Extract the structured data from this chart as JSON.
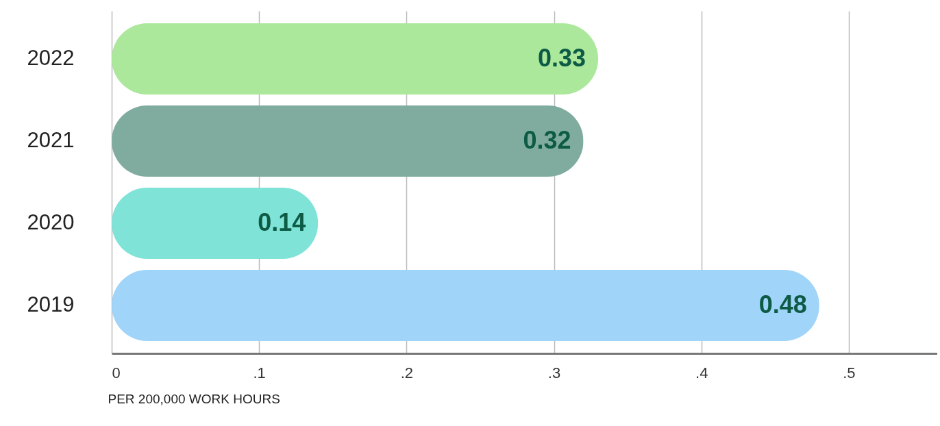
{
  "chart_data": {
    "type": "bar",
    "orientation": "horizontal",
    "xlabel": "PER 200,000 WORK HOURS",
    "categories": [
      "2022",
      "2021",
      "2020",
      "2019"
    ],
    "values": [
      0.33,
      0.32,
      0.14,
      0.48
    ],
    "colors": [
      "#abe89b",
      "#80ac9f",
      "#80e3d8",
      "#a0d4f8"
    ],
    "xlim": [
      0,
      0.56
    ],
    "xticks": [
      0,
      {
        "value": 0.1,
        "label": ".1"
      },
      {
        "value": 0.2,
        "label": ".2"
      },
      {
        "value": 0.3,
        "label": ".3"
      },
      {
        "value": 0.4,
        "label": ".4"
      },
      {
        "value": 0.5,
        "label": ".5"
      }
    ],
    "grid": "x",
    "data_labels": true
  }
}
